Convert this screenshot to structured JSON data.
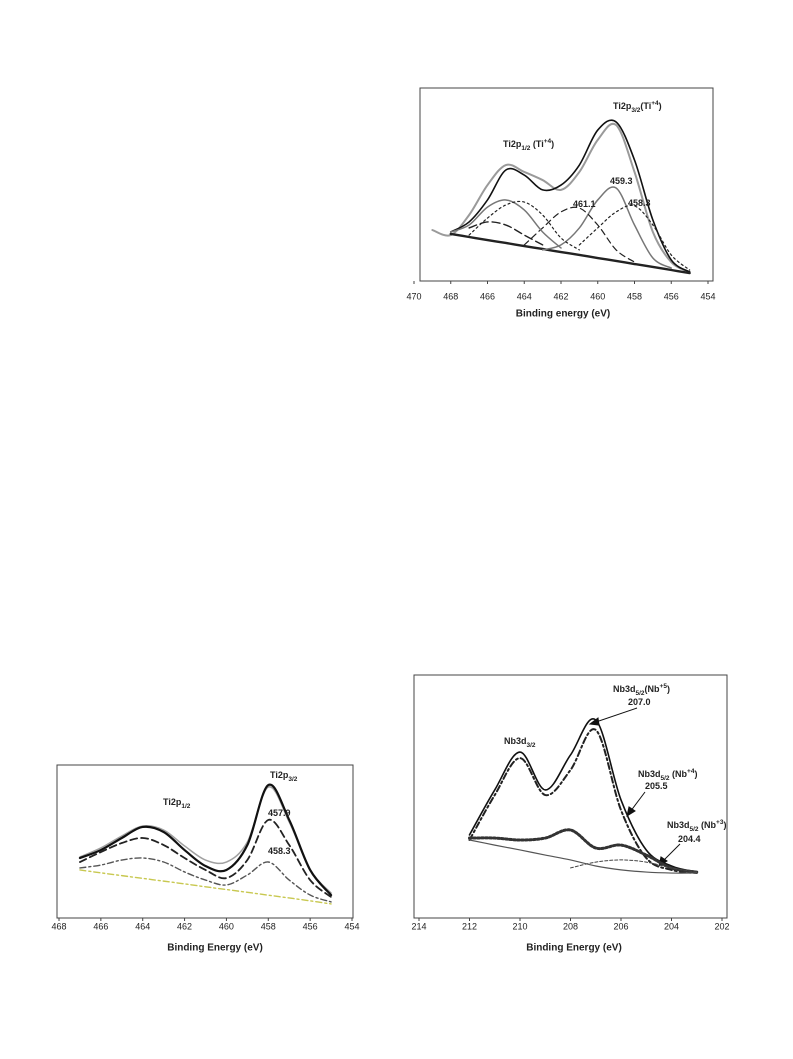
{
  "chart_data": [
    {
      "type": "line",
      "x_label": "Binding energy (eV)",
      "x": [
        469,
        468,
        467,
        466,
        465,
        464,
        463,
        462,
        461,
        460,
        459,
        458,
        457,
        456,
        455
      ],
      "xlim": [
        470,
        454
      ],
      "xticks": [
        470,
        468,
        466,
        464,
        462,
        460,
        458,
        456,
        454
      ],
      "ylim": [
        0,
        100
      ],
      "series": [
        {
          "color": "#9a9a9a",
          "width": 2,
          "values": [
            26.4,
            23.8,
            34.2,
            49.7,
            60.1,
            56.5,
            52.3,
            47.2,
            56.5,
            73.1,
            80.8,
            56.5,
            25.4,
            9.8,
            4.7
          ]
        },
        {
          "color": "#111111",
          "width": 1.6,
          "values": [
            null,
            25.4,
            30.6,
            42.0,
            57.5,
            54.9,
            47.2,
            49.7,
            60.1,
            78.2,
            82.4,
            62.7,
            31.6,
            10.9,
            4.7
          ]
        },
        {
          "color": "#222222",
          "width": 2.4,
          "values": [
            null,
            24.4,
            22.8,
            21.2,
            19.7,
            18.1,
            16.6,
            15.0,
            13.5,
            11.9,
            10.4,
            8.8,
            7.3,
            5.7,
            4.1
          ]
        },
        {
          "color": "#777777",
          "width": 1.5,
          "values": [
            null,
            null,
            null,
            null,
            null,
            null,
            16.1,
            18.7,
            27.5,
            42.0,
            48.2,
            29.0,
            11.9,
            6.7,
            null
          ]
        },
        {
          "color": "#222222",
          "width": 1.2,
          "dash": "2 3",
          "values": [
            null,
            null,
            null,
            null,
            null,
            null,
            null,
            null,
            18.7,
            27.5,
            35.8,
            38.9,
            29.0,
            13.5,
            5.7
          ]
        },
        {
          "color": "#222222",
          "width": 1.2,
          "dash": "6 4",
          "values": [
            null,
            null,
            null,
            null,
            null,
            18.7,
            27.5,
            35.8,
            37.8,
            29.0,
            16.1,
            9.8,
            null,
            null,
            null
          ]
        },
        {
          "color": "#777777",
          "width": 1.5,
          "values": [
            null,
            25.4,
            29.0,
            38.3,
            42.0,
            36.8,
            25.4,
            17.1,
            null,
            null,
            null,
            null,
            null,
            null,
            null
          ]
        },
        {
          "color": "#222222",
          "width": 1.2,
          "dash": "2 3",
          "values": [
            null,
            null,
            23.8,
            32.6,
            39.4,
            40.9,
            34.2,
            22.3,
            16.1,
            null,
            null,
            null,
            null,
            null,
            null
          ]
        },
        {
          "color": "#222222",
          "width": 1.4,
          "dash": "8 4",
          "values": [
            null,
            null,
            27.5,
            30.6,
            29.0,
            23.8,
            18.7,
            null,
            null,
            null,
            null,
            null,
            null,
            null,
            null
          ]
        }
      ],
      "annotations": [
        {
          "parts": [
            {
              "text": "Ti2p"
            },
            {
              "text": "1/2",
              "shift": "sub"
            },
            {
              "text": " (Ti"
            },
            {
              "text": "+4",
              "shift": "sup"
            },
            {
              "text": ")"
            }
          ]
        },
        {
          "parts": [
            {
              "text": "Ti2p"
            },
            {
              "text": "3/2",
              "shift": "sub"
            },
            {
              "text": "(Ti"
            },
            {
              "text": "+4",
              "shift": "sup"
            },
            {
              "text": ")"
            }
          ]
        },
        {
          "parts": [
            {
              "text": "459.3"
            }
          ]
        },
        {
          "parts": [
            {
              "text": "458.3"
            }
          ]
        },
        {
          "parts": [
            {
              "text": "461.1"
            }
          ]
        }
      ]
    },
    {
      "type": "line",
      "x_label": "Binding Energy (eV)",
      "x": [
        467,
        466,
        465,
        464,
        463,
        462,
        461,
        460,
        459,
        458,
        457,
        456,
        455
      ],
      "xlim": [
        468,
        454
      ],
      "xticks": [
        468,
        466,
        464,
        462,
        460,
        458,
        456,
        454
      ],
      "ylim": [
        0,
        100
      ],
      "series": [
        {
          "color": "#a0a0a0",
          "width": 1.5,
          "values": [
            39.9,
            45.8,
            53.6,
            60.1,
            57.5,
            47.1,
            37.9,
            36.6,
            49.7,
            85.6,
            62.7,
            31.4,
            16.3
          ]
        },
        {
          "color": "#111111",
          "width": 2.2,
          "values": [
            39.2,
            44.4,
            52.3,
            59.5,
            56.2,
            44.4,
            34.0,
            31.4,
            47.7,
            86.9,
            64.1,
            31.4,
            15.0
          ]
        },
        {
          "color": "#222222",
          "width": 1.8,
          "dash": "7 4",
          "values": [
            36.6,
            43.1,
            49.0,
            52.3,
            47.7,
            39.2,
            31.4,
            26.1,
            37.9,
            64.1,
            47.7,
            24.8,
            13.7
          ]
        },
        {
          "color": "#555555",
          "width": 1.4,
          "dash": "6 3 2 3",
          "values": [
            32.7,
            34.6,
            37.9,
            39.2,
            36.6,
            30.1,
            24.8,
            21.6,
            28.1,
            36.6,
            24.8,
            15.0,
            10.5
          ]
        },
        {
          "color": "#c8c850",
          "width": 1.4,
          "dash": "6 3 2 3",
          "values": [
            31.4,
            29.5,
            27.7,
            25.9,
            24.1,
            22.3,
            20.4,
            18.6,
            16.8,
            14.9,
            13.1,
            11.2,
            9.2
          ]
        }
      ],
      "annotations": [
        {
          "parts": [
            {
              "text": "Ti2p"
            },
            {
              "text": "1/2",
              "shift": "sub"
            }
          ]
        },
        {
          "parts": [
            {
              "text": "Ti2p"
            },
            {
              "text": "3/2",
              "shift": "sub"
            }
          ]
        },
        {
          "parts": [
            {
              "text": "457.9"
            }
          ]
        },
        {
          "parts": [
            {
              "text": "458.3"
            }
          ]
        }
      ]
    },
    {
      "type": "line",
      "x_label": "Binding Energy (eV)",
      "x": [
        212,
        211,
        210,
        209,
        208,
        207,
        206,
        205,
        204,
        203
      ],
      "xlim": [
        214,
        202
      ],
      "xticks": [
        214,
        212,
        210,
        208,
        206,
        204,
        202
      ],
      "ylim": [
        0,
        100
      ],
      "series": [
        {
          "color": "#111111",
          "width": 1.6,
          "values": [
            34.2,
            52.7,
            68.3,
            52.7,
            67.1,
            81.5,
            48.6,
            28.0,
            21.4,
            18.9
          ]
        },
        {
          "color": "#222222",
          "width": 2,
          "dash": "6 3 2 3",
          "values": [
            32.1,
            50.6,
            65.8,
            50.6,
            60.9,
            77.4,
            44.4,
            24.7,
            19.8,
            18.5
          ]
        },
        {
          "color": "#333333",
          "width": 3,
          "dash": "2 2",
          "values": [
            32.9,
            32.9,
            32.1,
            32.9,
            36.2,
            28.8,
            30.0,
            25.9,
            20.6,
            18.9
          ]
        },
        {
          "color": "#555555",
          "width": 1.2,
          "values": [
            32.1,
            30.0,
            28.0,
            25.9,
            23.9,
            21.4,
            19.8,
            18.9,
            18.5,
            18.5
          ]
        },
        {
          "color": "#444444",
          "width": 1,
          "dash": "3 2",
          "values": [
            null,
            null,
            null,
            null,
            20.6,
            23.0,
            23.9,
            23.0,
            20.6,
            18.9
          ]
        }
      ],
      "annotations": [
        {
          "parts": [
            {
              "text": "Nb3d"
            },
            {
              "text": "3/2",
              "shift": "sub"
            }
          ]
        },
        {
          "parts": [
            {
              "text": "Nb3d"
            },
            {
              "text": "5/2",
              "shift": "sub"
            },
            {
              "text": "(Nb"
            },
            {
              "text": "+5",
              "shift": "sup"
            },
            {
              "text": ")"
            }
          ]
        },
        {
          "parts": [
            {
              "text": "207.0"
            }
          ]
        },
        {
          "parts": [
            {
              "text": "Nb3d"
            },
            {
              "text": "5/2",
              "shift": "sub"
            },
            {
              "text": " (Nb"
            },
            {
              "text": "+4",
              "shift": "sup"
            },
            {
              "text": ")"
            }
          ]
        },
        {
          "parts": [
            {
              "text": "205.5"
            }
          ]
        },
        {
          "parts": [
            {
              "text": "Nb3d"
            },
            {
              "text": "5/2",
              "shift": "sub"
            },
            {
              "text": " (Nb"
            },
            {
              "text": "+3",
              "shift": "sup"
            },
            {
              "text": ")"
            }
          ]
        },
        {
          "parts": [
            {
              "text": "204.4"
            }
          ]
        }
      ]
    }
  ]
}
